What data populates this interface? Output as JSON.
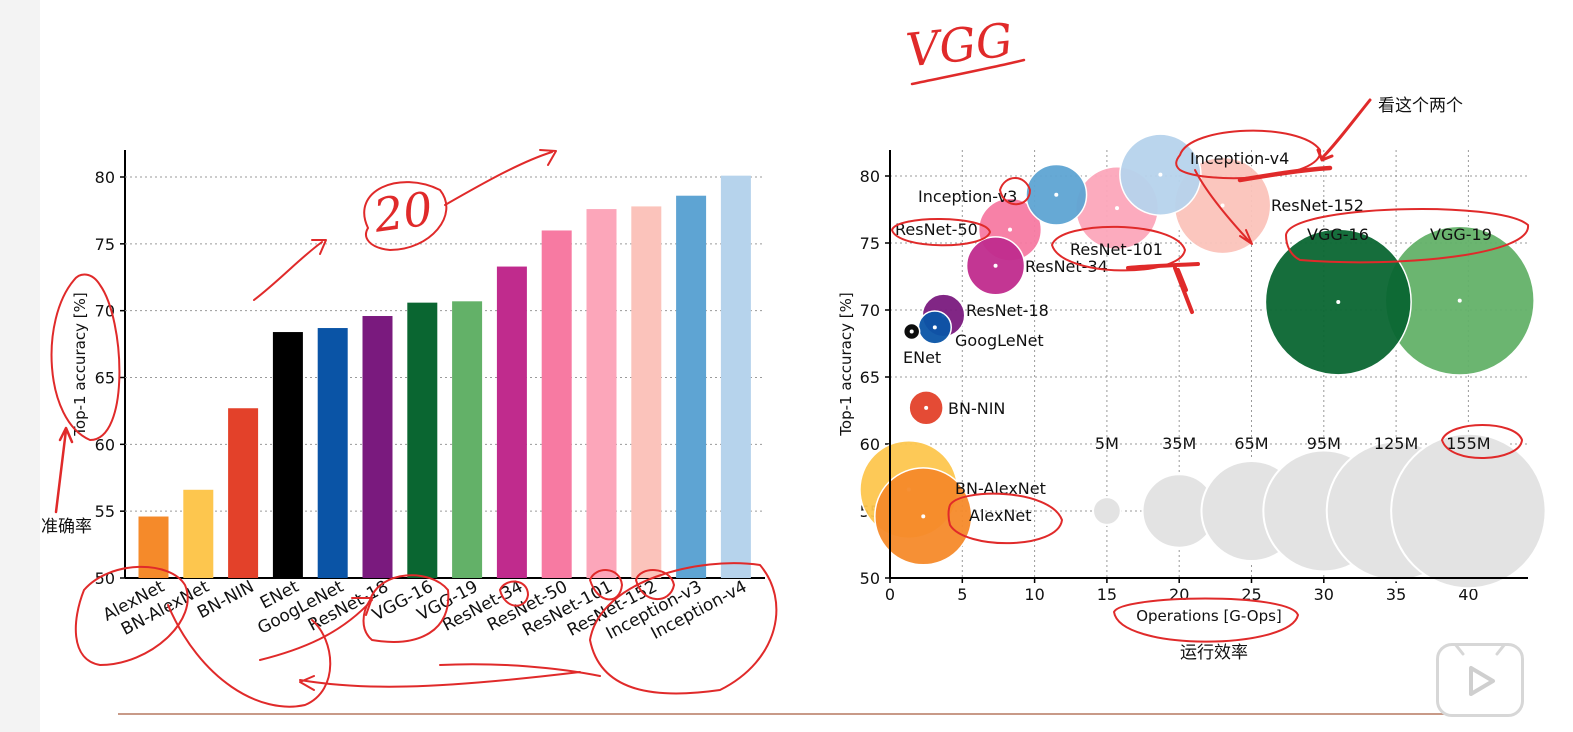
{
  "chart_data": [
    {
      "type": "bar",
      "title": "",
      "xlabel": "",
      "ylabel": "Top-1 accuracy [%]",
      "ylim": [
        50,
        80
      ],
      "yticks": [
        50,
        55,
        60,
        65,
        70,
        75,
        80
      ],
      "grid": true,
      "categories": [
        "AlexNet",
        "BN-AlexNet",
        "BN-NIN",
        "ENet",
        "GoogLeNet",
        "ResNet-18",
        "VGG-16",
        "VGG-19",
        "ResNet-34",
        "ResNet-50",
        "ResNet-101",
        "ResNet-152",
        "Inception-v3",
        "Inception-v4"
      ],
      "values": [
        54.6,
        56.6,
        62.7,
        68.4,
        68.7,
        69.6,
        70.6,
        70.7,
        73.3,
        76.0,
        77.6,
        77.8,
        78.6,
        80.1
      ],
      "colors": [
        "#f58a2a",
        "#fdc64e",
        "#e3412a",
        "#000000",
        "#0a54a6",
        "#7a1a7e",
        "#0a6631",
        "#63b168",
        "#c02b8d",
        "#f77aa2",
        "#fca6ba",
        "#fbc3bb",
        "#5ea4d3",
        "#b6d3ec"
      ]
    },
    {
      "type": "scatter",
      "title": "",
      "xlabel": "Operations [G-Ops]",
      "ylabel": "Top-1 accuracy [%]",
      "xlim": [
        0,
        44
      ],
      "ylim": [
        50,
        82
      ],
      "xticks": [
        0,
        5,
        10,
        15,
        20,
        25,
        30,
        35,
        40
      ],
      "yticks": [
        50,
        55,
        60,
        65,
        70,
        75,
        80
      ],
      "grid": true,
      "points": [
        {
          "name": "AlexNet",
          "x": 2.3,
          "y": 54.6,
          "params_m": 61,
          "color": "#f58a2a"
        },
        {
          "name": "BN-AlexNet",
          "x": 1.3,
          "y": 56.6,
          "params_m": 62,
          "color": "#fdc64e"
        },
        {
          "name": "BN-NIN",
          "x": 2.5,
          "y": 62.7,
          "params_m": 7.5,
          "color": "#e3412a"
        },
        {
          "name": "ENet",
          "x": 1.5,
          "y": 68.4,
          "params_m": 0.4,
          "color": "#000000"
        },
        {
          "name": "GoogLeNet",
          "x": 3.1,
          "y": 68.7,
          "params_m": 7,
          "color": "#0a54a6"
        },
        {
          "name": "ResNet-18",
          "x": 3.7,
          "y": 69.6,
          "params_m": 11.7,
          "color": "#7a1a7e"
        },
        {
          "name": "VGG-16",
          "x": 31,
          "y": 70.6,
          "params_m": 138,
          "color": "#0a6631"
        },
        {
          "name": "VGG-19",
          "x": 39.4,
          "y": 70.7,
          "params_m": 144,
          "color": "#63b168"
        },
        {
          "name": "ResNet-34",
          "x": 7.3,
          "y": 73.3,
          "params_m": 21.8,
          "color": "#c02b8d"
        },
        {
          "name": "ResNet-50",
          "x": 8.3,
          "y": 76.0,
          "params_m": 25.6,
          "color": "#f77aa2"
        },
        {
          "name": "ResNet-101",
          "x": 15.7,
          "y": 77.6,
          "params_m": 44.5,
          "color": "#fca6ba"
        },
        {
          "name": "ResNet-152",
          "x": 23.0,
          "y": 77.8,
          "params_m": 60.2,
          "color": "#fbc3bb"
        },
        {
          "name": "Inception-v3",
          "x": 11.5,
          "y": 78.6,
          "params_m": 23.8,
          "color": "#5ea4d3"
        },
        {
          "name": "Inception-v4",
          "x": 18.7,
          "y": 80.1,
          "params_m": 42.7,
          "color": "#b6d3ec"
        }
      ],
      "size_legend": [
        {
          "label": "5M",
          "params_m": 5,
          "x": 15
        },
        {
          "label": "35M",
          "params_m": 35,
          "x": 20
        },
        {
          "label": "65M",
          "params_m": 65,
          "x": 25
        },
        {
          "label": "95M",
          "params_m": 95,
          "x": 30
        },
        {
          "label": "125M",
          "params_m": 125,
          "x": 35
        },
        {
          "label": "155M",
          "params_m": 155,
          "x": 40
        }
      ],
      "size_legend_y": 55
    }
  ],
  "annotations": {
    "vgg": "VGG",
    "twenty": "20",
    "accuracy_cn": "准确率",
    "look_cn": "看这个两个",
    "efficiency_cn": "运行效率"
  },
  "colors": {
    "annotation": "#e02a2a",
    "grid": "#9a9a9a"
  }
}
